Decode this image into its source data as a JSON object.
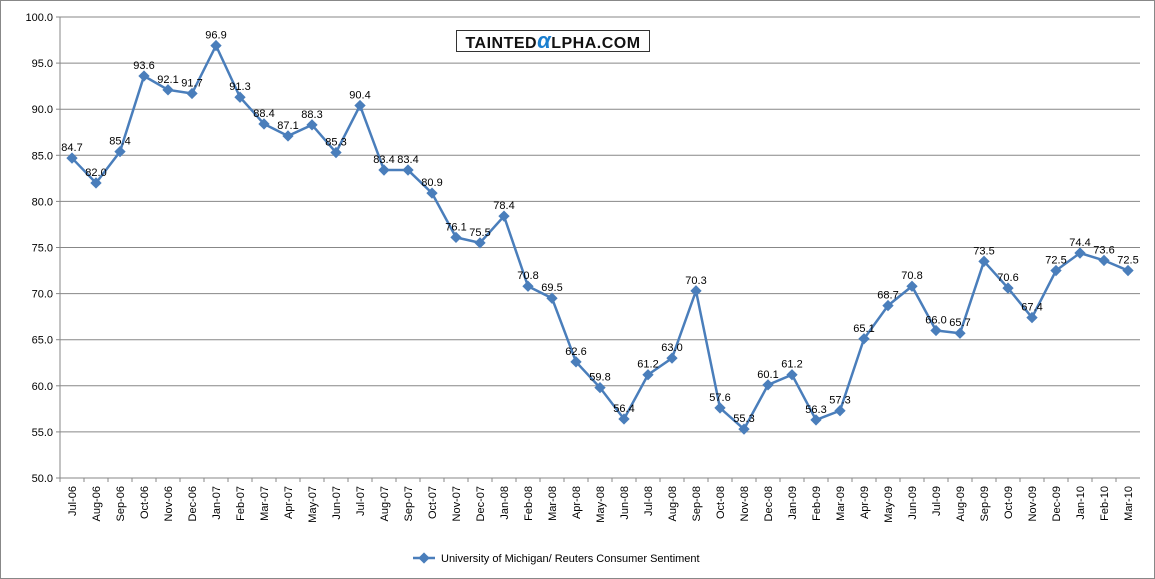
{
  "logo": {
    "pre": "TAINTED",
    "alpha": "α",
    "post": "LPHA.COM",
    "full": "TaintedAlpha.com"
  },
  "chart_data": {
    "type": "line",
    "title": "",
    "xlabel": "",
    "ylabel": "",
    "ylim": [
      50,
      100
    ],
    "yticks": [
      "50.0",
      "55.0",
      "60.0",
      "65.0",
      "70.0",
      "75.0",
      "80.0",
      "85.0",
      "90.0",
      "95.0",
      "100.0"
    ],
    "grid": true,
    "legend_position": "bottom",
    "color": "#4a7ebb",
    "series": [
      {
        "name": "University of Michigan/ Reuters Consumer Sentiment",
        "values": [
          84.7,
          82.0,
          85.4,
          93.6,
          92.1,
          91.7,
          96.9,
          91.3,
          88.4,
          87.1,
          88.3,
          85.3,
          90.4,
          83.4,
          83.4,
          80.9,
          76.1,
          75.5,
          78.4,
          70.8,
          69.5,
          62.6,
          59.8,
          56.4,
          61.2,
          63.0,
          70.3,
          57.6,
          55.3,
          60.1,
          61.2,
          56.3,
          57.3,
          65.1,
          68.7,
          70.8,
          66.0,
          65.7,
          73.5,
          70.6,
          67.4,
          72.5,
          74.4,
          73.6,
          72.5
        ]
      }
    ],
    "categories": [
      "Jul-06",
      "Aug-06",
      "Sep-06",
      "Oct-06",
      "Nov-06",
      "Dec-06",
      "Jan-07",
      "Feb-07",
      "Mar-07",
      "Apr-07",
      "May-07",
      "Jun-07",
      "Jul-07",
      "Aug-07",
      "Sep-07",
      "Oct-07",
      "Nov-07",
      "Dec-07",
      "Jan-08",
      "Feb-08",
      "Mar-08",
      "Apr-08",
      "May-08",
      "Jun-08",
      "Jul-08",
      "Aug-08",
      "Sep-08",
      "Oct-08",
      "Nov-08",
      "Dec-08",
      "Jan-09",
      "Feb-09",
      "Mar-09",
      "Apr-09",
      "May-09",
      "Jun-09",
      "Jul-09",
      "Aug-09",
      "Sep-09",
      "Oct-09",
      "Nov-09",
      "Dec-09",
      "Jan-10",
      "Feb-10",
      "Mar-10"
    ]
  }
}
